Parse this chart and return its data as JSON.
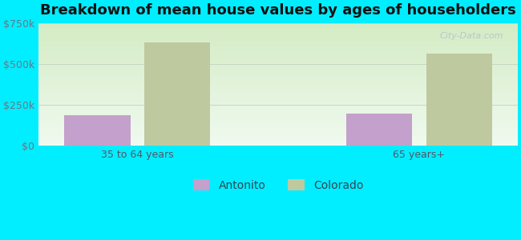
{
  "title": "Breakdown of mean house values by ages of householders",
  "categories": [
    "35 to 64 years",
    "65 years+"
  ],
  "series": {
    "Antonito": [
      185000,
      195000
    ],
    "Colorado": [
      635000,
      565000
    ]
  },
  "bar_colors": {
    "Antonito": "#c4a0cc",
    "Colorado": "#bfc9a0"
  },
  "ylim": [
    0,
    750000
  ],
  "yticks": [
    0,
    250000,
    500000,
    750000
  ],
  "ytick_labels": [
    "$0",
    "$250k",
    "$500k",
    "$750k"
  ],
  "background_color": "#00eeff",
  "grad_top": "#d4ecc4",
  "grad_bottom": "#f0faf0",
  "title_fontsize": 13,
  "tick_fontsize": 9,
  "legend_fontsize": 10,
  "bar_width": 0.28,
  "watermark": "City-Data.com"
}
